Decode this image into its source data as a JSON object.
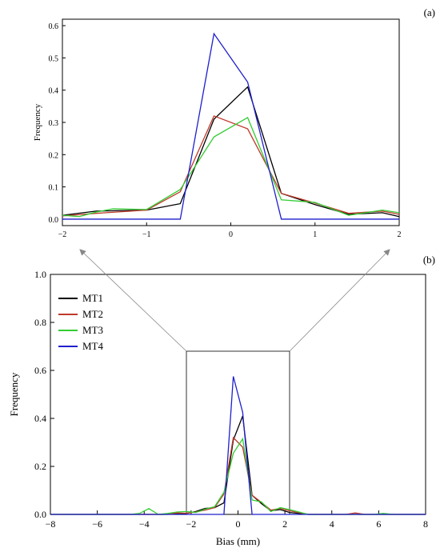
{
  "chart_data": [
    {
      "panel_label": "(a)",
      "type": "line",
      "xlabel": "",
      "ylabel": "Frequency",
      "xlim": [
        -2,
        2
      ],
      "ylim": [
        -0.02,
        0.62
      ],
      "xticks": [
        -2,
        -1,
        0,
        1,
        2
      ],
      "xtick_labels": [
        "-2",
        "-1",
        "0",
        "1",
        "2"
      ],
      "yticks": [
        0.0,
        0.1,
        0.2,
        0.3,
        0.4,
        0.5,
        0.6
      ],
      "ytick_labels": [
        "0.0",
        "0.1",
        "0.2",
        "0.3",
        "0.4",
        "0.5",
        "0.6"
      ],
      "grid": false,
      "series": [
        {
          "color": "#000000",
          "x": [
            -2.0,
            -1.6,
            -1.0,
            -0.6,
            -0.2,
            0.2,
            0.6,
            1.0,
            1.4,
            1.8,
            2.0
          ],
          "y": [
            0.012,
            0.025,
            0.028,
            0.048,
            0.31,
            0.41,
            0.08,
            0.045,
            0.015,
            0.02,
            0.008
          ]
        },
        {
          "color": "#c0392b",
          "x": [
            -2.0,
            -1.6,
            -1.0,
            -0.6,
            -0.2,
            0.2,
            0.6,
            1.0,
            1.4,
            1.8,
            2.0
          ],
          "y": [
            0.01,
            0.018,
            0.028,
            0.085,
            0.32,
            0.28,
            0.08,
            0.05,
            0.018,
            0.025,
            0.015
          ]
        },
        {
          "color": "#33cc33",
          "x": [
            -2.0,
            -1.8,
            -1.6,
            -1.4,
            -1.0,
            -0.6,
            -0.2,
            0.2,
            0.6,
            1.0,
            1.4,
            1.8,
            2.0
          ],
          "y": [
            0.012,
            0.008,
            0.022,
            0.032,
            0.03,
            0.092,
            0.255,
            0.315,
            0.06,
            0.052,
            0.012,
            0.028,
            0.02
          ]
        },
        {
          "color": "#1f1fcc",
          "x": [
            -2.0,
            -0.6,
            -0.2,
            0.2,
            0.6,
            2.0
          ],
          "y": [
            0.0,
            0.0,
            0.575,
            0.425,
            0.0,
            0.0
          ]
        }
      ]
    },
    {
      "panel_label": "(b)",
      "type": "line",
      "xlabel": "Bias (mm)",
      "ylabel": "Frequency",
      "xlim": [
        -8,
        8
      ],
      "ylim": [
        0.0,
        1.0
      ],
      "xticks": [
        -8,
        -6,
        -4,
        -2,
        0,
        2,
        4,
        6,
        8
      ],
      "xtick_labels": [
        "-8",
        "-6",
        "-4",
        "-2",
        "0",
        "2",
        "4",
        "6",
        "8"
      ],
      "yticks": [
        0.0,
        0.2,
        0.4,
        0.6,
        0.8,
        1.0
      ],
      "ytick_labels": [
        "0.0",
        "0.2",
        "0.4",
        "0.6",
        "0.8",
        "1.0"
      ],
      "grid": false,
      "legend": {
        "placement": "top-left",
        "entries": [
          "MT1",
          "MT2",
          "MT3",
          "MT4"
        ]
      },
      "zoom_box": {
        "x": [
          -2.2,
          2.2
        ],
        "y": [
          0.0,
          0.68
        ]
      },
      "series": [
        {
          "name": "MT1",
          "color": "#000000",
          "x": [
            -8,
            -3.0,
            -2.2,
            -1.8,
            -1.4,
            -1.0,
            -0.6,
            -0.2,
            0.2,
            0.6,
            1.0,
            1.4,
            1.8,
            2.2,
            3.0,
            8
          ],
          "y": [
            0,
            0.0,
            0.004,
            0.012,
            0.025,
            0.028,
            0.048,
            0.31,
            0.41,
            0.08,
            0.045,
            0.015,
            0.02,
            0.008,
            0.0,
            0
          ]
        },
        {
          "name": "MT2",
          "color": "#c0392b",
          "x": [
            -8,
            -3.2,
            -2.6,
            -2.2,
            -1.8,
            -1.4,
            -1.0,
            -0.6,
            -0.2,
            0.2,
            0.6,
            1.0,
            1.4,
            1.8,
            2.2,
            3.0,
            4.6,
            5.0,
            5.4,
            8
          ],
          "y": [
            0,
            0.0,
            0.006,
            0.005,
            0.01,
            0.018,
            0.028,
            0.085,
            0.32,
            0.28,
            0.08,
            0.05,
            0.018,
            0.025,
            0.015,
            0.0,
            0.0,
            0.006,
            0.0,
            0
          ]
        },
        {
          "name": "MT3",
          "color": "#33cc33",
          "x": [
            -8,
            -4.6,
            -4.2,
            -3.8,
            -3.4,
            -3.0,
            -2.6,
            -2.2,
            -1.8,
            -1.4,
            -1.0,
            -0.6,
            -0.2,
            0.2,
            0.6,
            1.0,
            1.4,
            1.8,
            2.2,
            2.6,
            3.0,
            5.8,
            6.2,
            6.6,
            8
          ],
          "y": [
            0,
            0.0,
            0.004,
            0.024,
            0.0,
            0.004,
            0.01,
            0.012,
            0.008,
            0.022,
            0.032,
            0.092,
            0.255,
            0.315,
            0.06,
            0.052,
            0.012,
            0.028,
            0.02,
            0.01,
            0.0,
            0.0,
            0.004,
            0.0,
            0
          ]
        },
        {
          "name": "MT4",
          "color": "#1f1fcc",
          "x": [
            -8,
            -0.6,
            -0.2,
            0.2,
            0.6,
            8
          ],
          "y": [
            0,
            0.0,
            0.575,
            0.425,
            0.0,
            0
          ]
        }
      ]
    }
  ]
}
